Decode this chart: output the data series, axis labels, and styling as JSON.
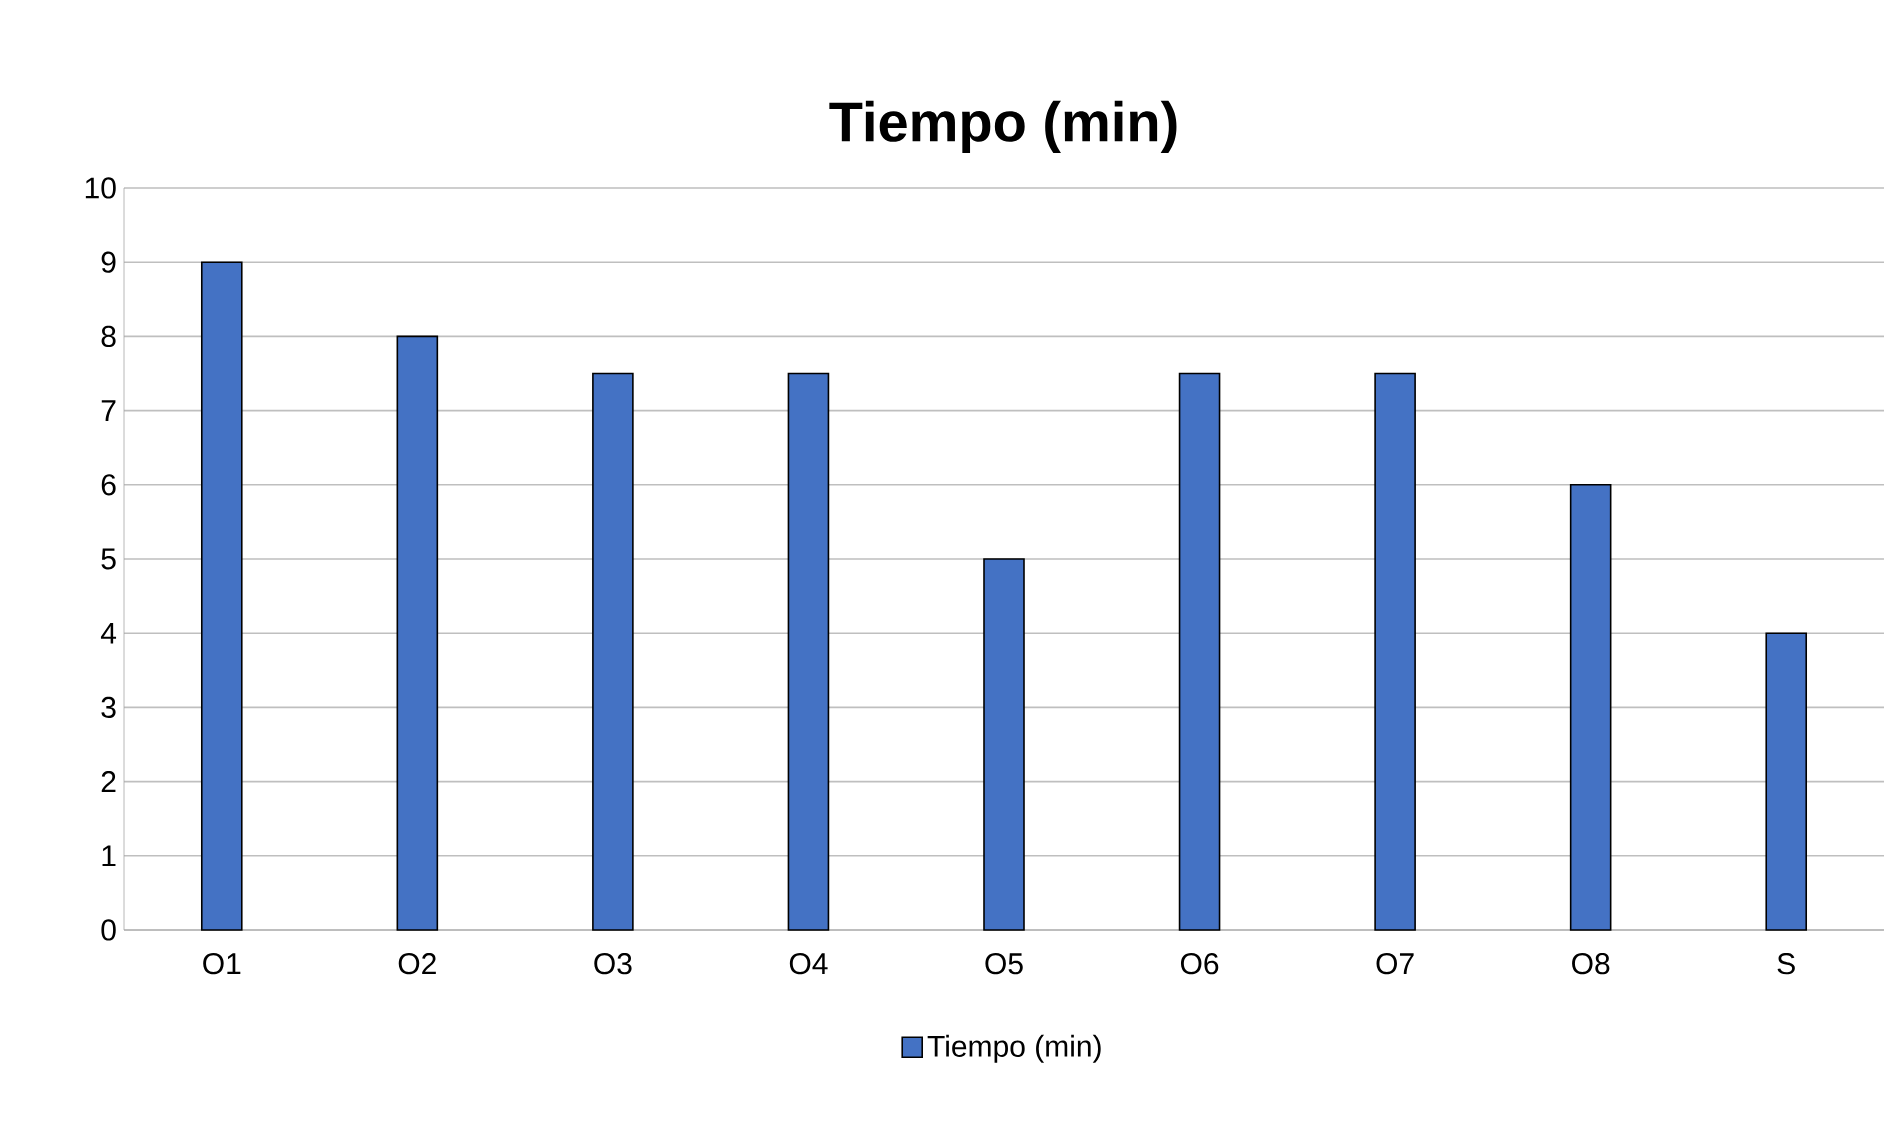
{
  "chart_data": {
    "type": "bar",
    "title": "Tiempo (min)",
    "categories": [
      "O1",
      "O2",
      "O3",
      "O4",
      "O5",
      "O6",
      "O7",
      "O8",
      "S"
    ],
    "series": [
      {
        "name": "Tiempo (min)",
        "color": "#4472c4",
        "values": [
          9,
          8,
          7.5,
          7.5,
          5,
          7.5,
          7.5,
          6,
          4
        ]
      }
    ],
    "ylim": [
      0,
      10
    ],
    "yticks": [
      0,
      1,
      2,
      3,
      4,
      5,
      6,
      7,
      8,
      9,
      10
    ],
    "grid": "y",
    "legend": "bottom"
  }
}
